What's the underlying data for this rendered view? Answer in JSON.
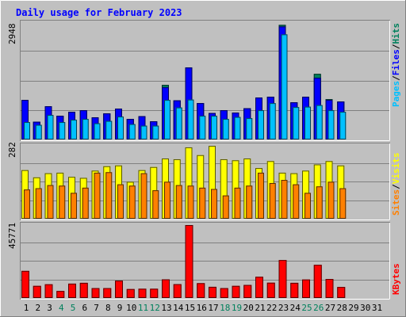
{
  "chart_data": [
    {
      "type": "bar",
      "title": "Daily usage for February 2023",
      "ymax": 2948,
      "ymax_label": "2948",
      "categories": [
        "1",
        "2",
        "3",
        "4",
        "5",
        "6",
        "7",
        "8",
        "9",
        "10",
        "11",
        "12",
        "13",
        "14",
        "15",
        "16",
        "17",
        "18",
        "19",
        "20",
        "21",
        "22",
        "23",
        "24",
        "25",
        "26",
        "27",
        "28",
        "29",
        "30",
        "31"
      ],
      "weekend_days": [
        "4",
        "5",
        "11",
        "12",
        "18",
        "19",
        "25",
        "26"
      ],
      "series": [
        {
          "name": "Hits",
          "color": "#00805c",
          "values": [
            1000,
            450,
            840,
            600,
            700,
            740,
            560,
            660,
            780,
            520,
            590,
            460,
            1380,
            990,
            1820,
            920,
            670,
            740,
            680,
            790,
            1060,
            1080,
            2900,
            940,
            1080,
            1660,
            1020,
            960,
            null,
            null,
            null
          ]
        },
        {
          "name": "Files",
          "color": "#0000ff",
          "values": [
            1000,
            450,
            840,
            600,
            700,
            740,
            560,
            660,
            780,
            520,
            590,
            460,
            1320,
            990,
            1820,
            920,
            670,
            740,
            680,
            790,
            1060,
            1080,
            2860,
            940,
            1080,
            1560,
            1000,
            960,
            null,
            null,
            null
          ]
        },
        {
          "name": "Pages",
          "color": "#00c0ff",
          "values": [
            440,
            370,
            620,
            440,
            500,
            520,
            410,
            470,
            580,
            390,
            350,
            350,
            1000,
            810,
            1010,
            600,
            600,
            520,
            570,
            540,
            740,
            920,
            2660,
            820,
            830,
            870,
            740,
            700,
            null,
            null,
            null
          ]
        }
      ],
      "legend": [
        "Pages",
        "Files",
        "Hits"
      ]
    },
    {
      "type": "bar",
      "ymax": 282,
      "ymax_label": "282",
      "series": [
        {
          "name": "Visits",
          "color": "#ffff00",
          "values": [
            188,
            160,
            176,
            178,
            162,
            158,
            186,
            203,
            206,
            143,
            188,
            200,
            233,
            230,
            276,
            246,
            282,
            230,
            226,
            233,
            196,
            223,
            178,
            176,
            186,
            210,
            223,
            206,
            null,
            null,
            null
          ]
        },
        {
          "name": "Sites",
          "color": "#ff8000",
          "values": [
            113,
            118,
            130,
            128,
            100,
            120,
            178,
            180,
            133,
            128,
            176,
            110,
            143,
            130,
            128,
            120,
            115,
            90,
            120,
            128,
            178,
            138,
            150,
            133,
            100,
            125,
            143,
            118,
            null,
            null,
            null
          ]
        }
      ],
      "legend": [
        "Sites",
        "Visits"
      ]
    },
    {
      "type": "bar",
      "ymax": 45771,
      "ymax_label": "45771",
      "series": [
        {
          "name": "KBytes",
          "color": "#ff0000",
          "values": [
            17000,
            7600,
            8600,
            4400,
            9000,
            9500,
            6200,
            6200,
            10900,
            5600,
            5800,
            5800,
            11700,
            8700,
            45771,
            9300,
            7000,
            6200,
            7600,
            8200,
            13300,
            9600,
            23800,
            9500,
            11600,
            20800,
            11900,
            6900,
            null,
            null,
            null
          ]
        }
      ],
      "legend": [
        "KBytes"
      ]
    }
  ],
  "colors": {
    "background": "#c0c0c0",
    "plot_background": "#c0c0c0",
    "title": "#0000ff",
    "weekday_label": "#000000",
    "weekend_label": "#00805c"
  }
}
